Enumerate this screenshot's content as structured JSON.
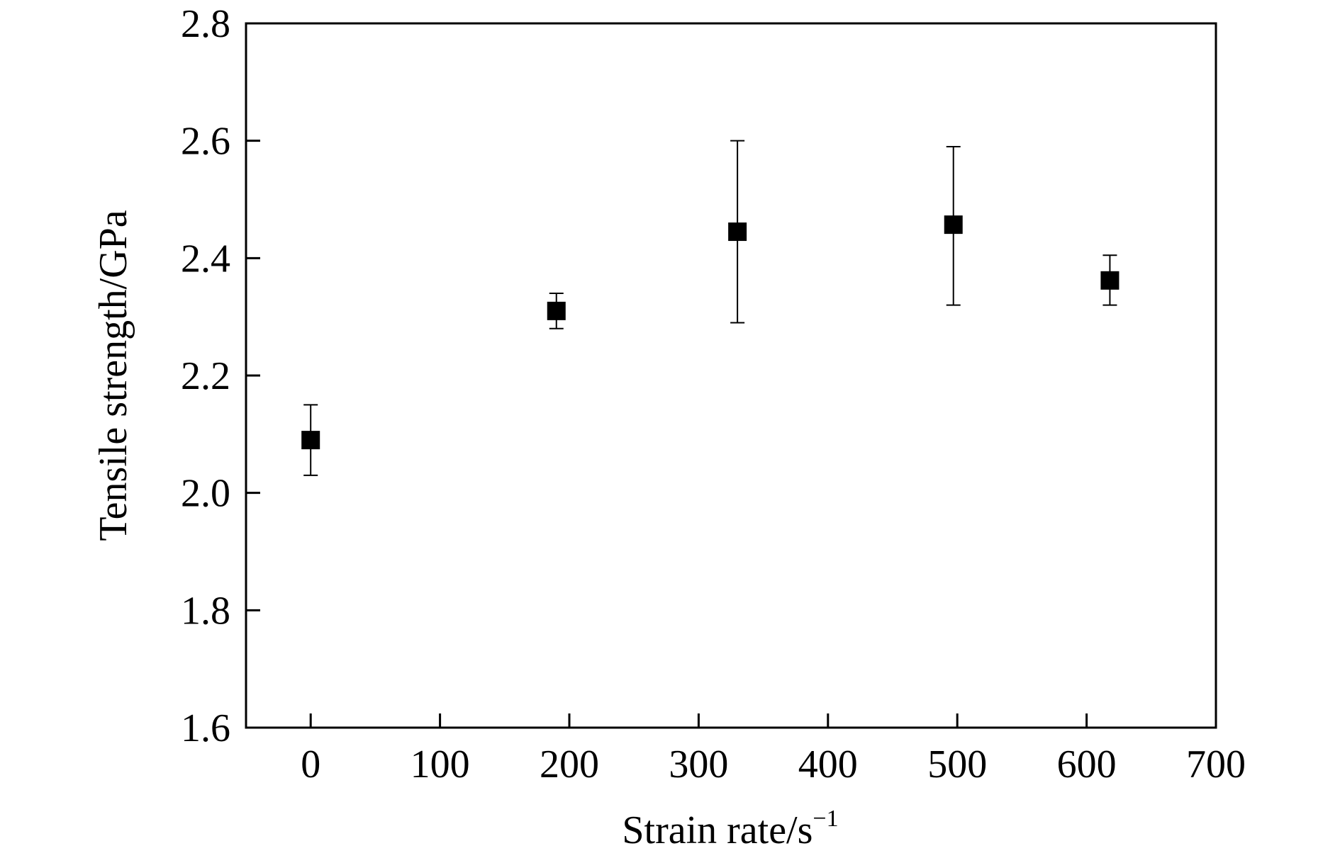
{
  "chart_data": {
    "type": "scatter",
    "title": "",
    "xlabel": "Strain rate/s",
    "xlabel_sup": "−1",
    "ylabel": "Tensile strength/GPa",
    "xlim": [
      -50,
      700
    ],
    "ylim": [
      1.6,
      2.8
    ],
    "xticks": [
      0,
      100,
      200,
      300,
      400,
      500,
      600,
      700
    ],
    "yticks": [
      1.6,
      1.8,
      2.0,
      2.2,
      2.4,
      2.6,
      2.8
    ],
    "xtick_labels": [
      "0",
      "100",
      "200",
      "300",
      "400",
      "500",
      "600",
      "700"
    ],
    "ytick_labels": [
      "1.6",
      "1.8",
      "2.0",
      "2.2",
      "2.4",
      "2.6",
      "2.8"
    ],
    "grid": false,
    "marker": "square",
    "color": "#000000",
    "points": [
      {
        "x": 0,
        "y": 2.09,
        "err_low": 2.03,
        "err_high": 2.15
      },
      {
        "x": 190,
        "y": 2.31,
        "err_low": 2.28,
        "err_high": 2.34
      },
      {
        "x": 330,
        "y": 2.445,
        "err_low": 2.29,
        "err_high": 2.6
      },
      {
        "x": 497,
        "y": 2.457,
        "err_low": 2.32,
        "err_high": 2.59
      },
      {
        "x": 618,
        "y": 2.362,
        "err_low": 2.32,
        "err_high": 2.405
      }
    ]
  }
}
